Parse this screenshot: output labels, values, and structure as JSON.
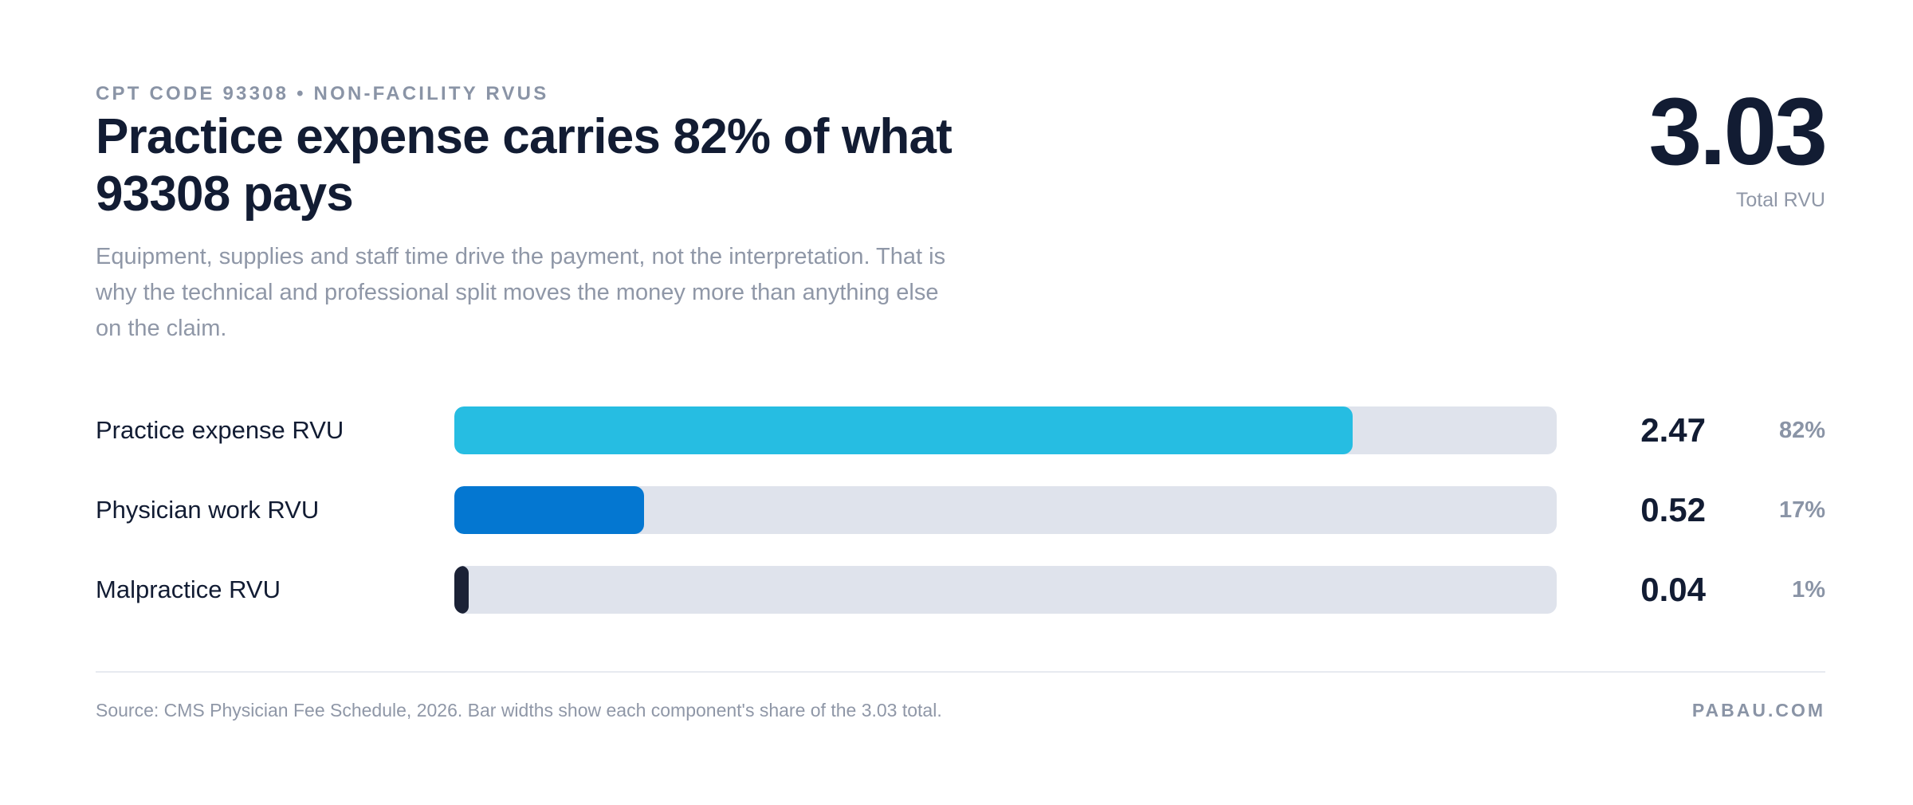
{
  "header": {
    "eyebrow": "CPT CODE 93308 • NON-FACILITY RVUS",
    "title": "Practice expense carries 82% of what 93308 pays",
    "subtitle": "Equipment, supplies and staff time drive the payment, not the interpretation. That is why the technical and professional split moves the money more than anything else on the claim."
  },
  "kpi": {
    "value": "3.03",
    "label": "Total RVU"
  },
  "chart_data": {
    "type": "bar",
    "orientation": "horizontal",
    "categories": [
      "Practice expense RVU",
      "Physician work RVU",
      "Malpractice RVU"
    ],
    "values": [
      2.47,
      0.52,
      0.04
    ],
    "value_labels": [
      "2.47",
      "0.52",
      "0.04"
    ],
    "percent_labels": [
      "82%",
      "17%",
      "1%"
    ],
    "shares": [
      0.815,
      0.172,
      0.013
    ],
    "colors": [
      "#26bde2",
      "#0477d1",
      "#1b2236"
    ],
    "track_color": "#dfe3ec",
    "xlim": [
      0,
      3.03
    ],
    "grid": false
  },
  "footer": {
    "source": "Source: CMS Physician Fee Schedule, 2026. Bar widths show each component's share of the 3.03 total.",
    "brand": "PABAU.COM"
  }
}
